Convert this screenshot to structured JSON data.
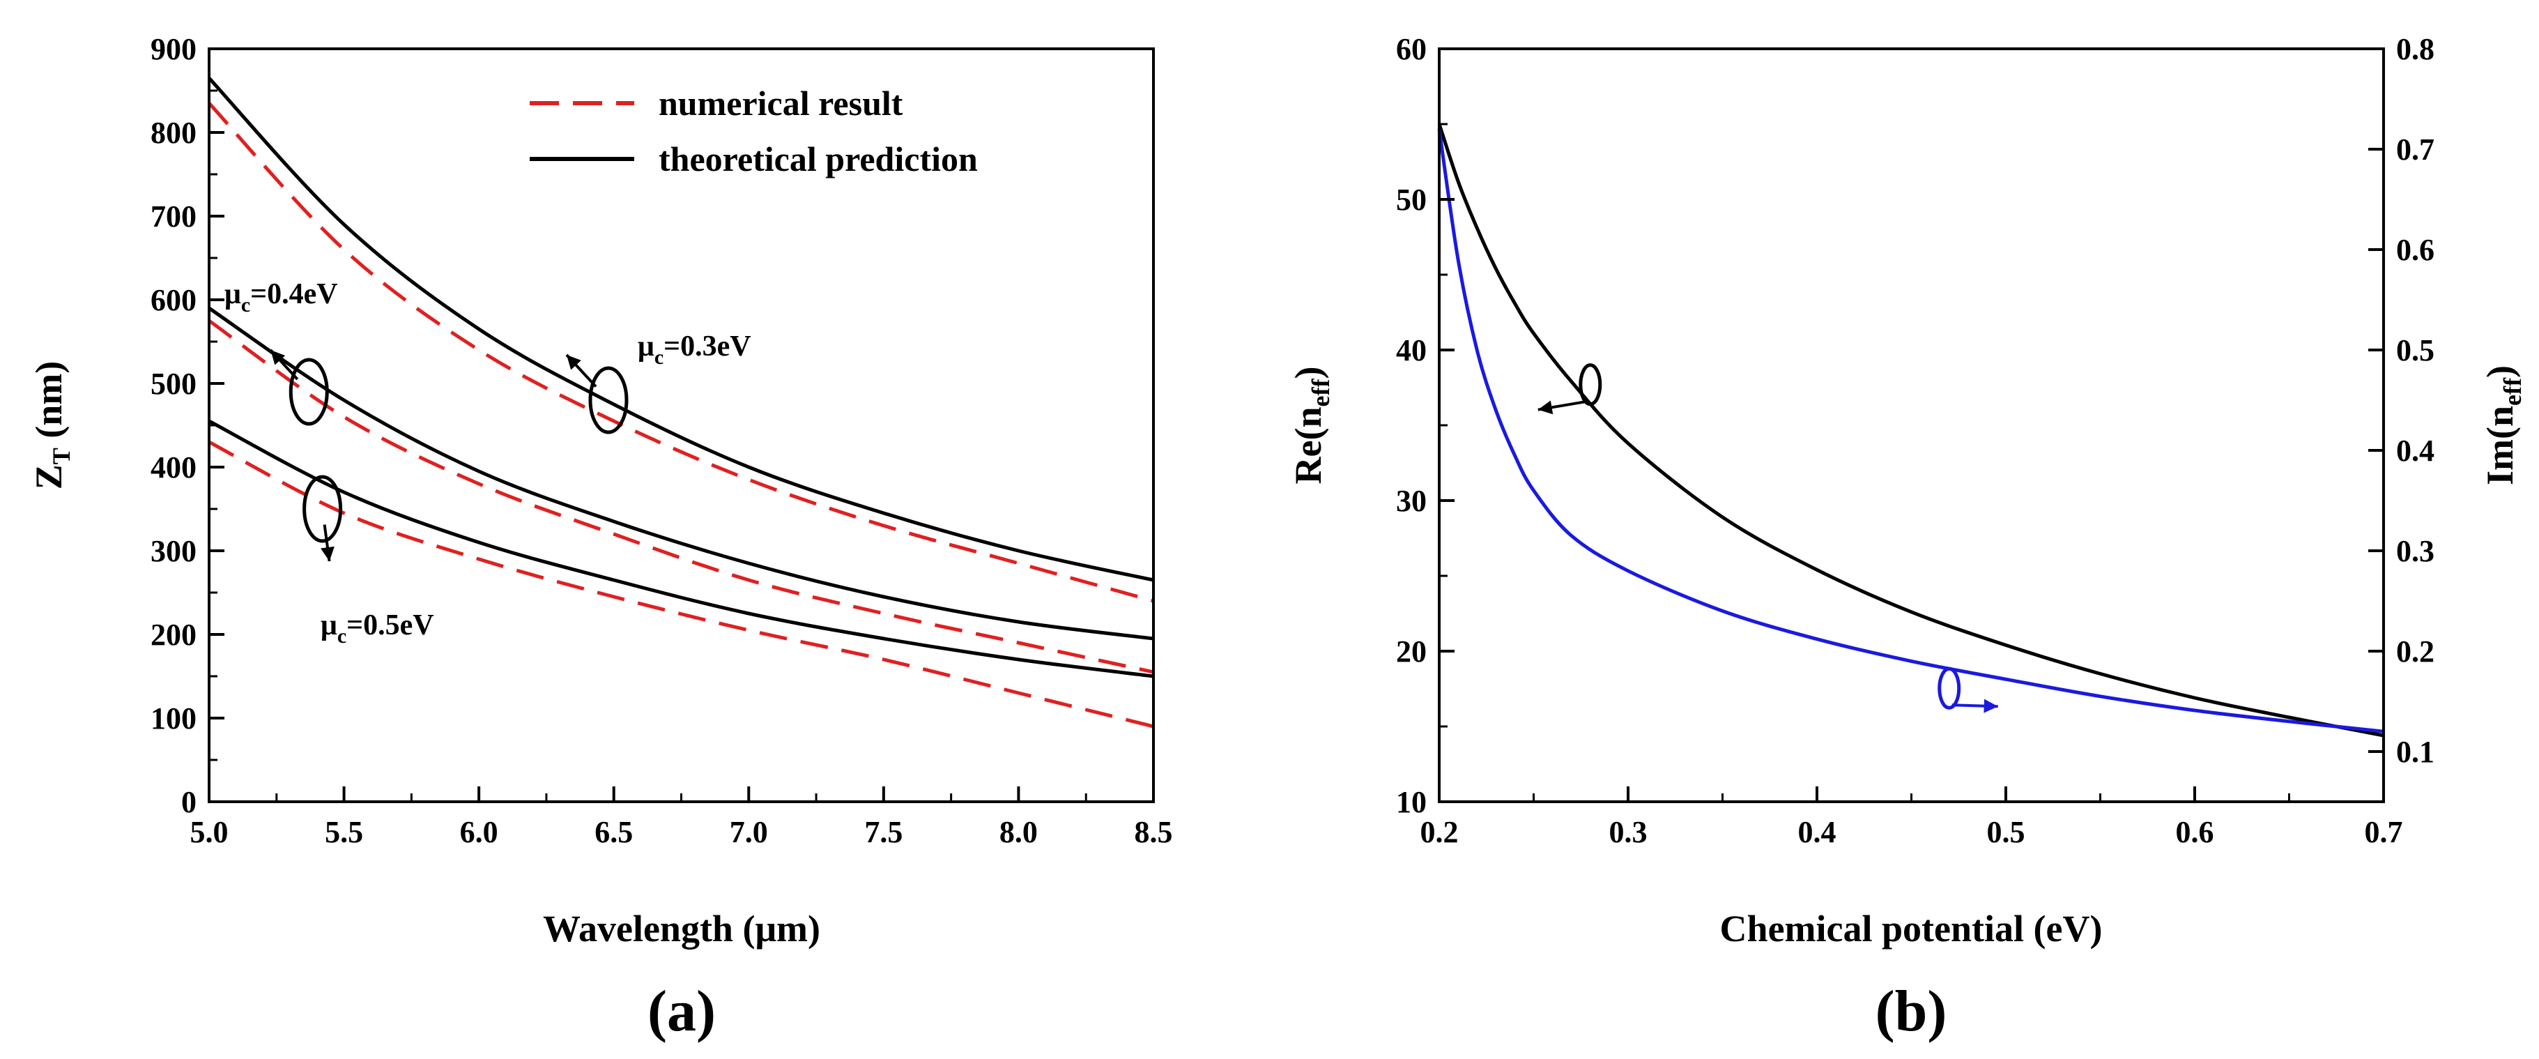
{
  "chart_data": [
    {
      "panel_label": "(a)",
      "type": "line",
      "xlabel": "Wavelength (μm)",
      "ylabel": {
        "main": "Z",
        "sub": "T",
        "rest": " (nm)"
      },
      "xlim": [
        5.0,
        8.5
      ],
      "ylim": [
        0,
        900
      ],
      "xticks": [
        "5.0",
        "5.5",
        "6.0",
        "6.5",
        "7.0",
        "7.5",
        "8.0",
        "8.5"
      ],
      "yticks": [
        "0",
        "100",
        "200",
        "300",
        "400",
        "500",
        "600",
        "700",
        "800",
        "900"
      ],
      "grid": false,
      "legend_position": "top-right",
      "legend": [
        {
          "label": "numerical result",
          "style": "dashed",
          "color": "#e02020"
        },
        {
          "label": "theoretical prediction",
          "style": "solid",
          "color": "#000000"
        }
      ],
      "x": [
        5.0,
        5.5,
        6.0,
        6.5,
        7.0,
        7.5,
        8.0,
        8.5
      ],
      "series": [
        {
          "group": "μc=0.3eV",
          "kind": "theoretical prediction",
          "style": "solid",
          "color": "#000000",
          "values": [
            865,
            690,
            565,
            475,
            400,
            345,
            300,
            265
          ]
        },
        {
          "group": "μc=0.3eV",
          "kind": "numerical result",
          "style": "dashed",
          "color": "#e02020",
          "values": [
            835,
            660,
            540,
            455,
            385,
            330,
            285,
            240
          ]
        },
        {
          "group": "μc=0.4eV",
          "kind": "theoretical prediction",
          "style": "solid",
          "color": "#000000",
          "values": [
            590,
            480,
            395,
            335,
            285,
            245,
            215,
            195
          ]
        },
        {
          "group": "μc=0.4eV",
          "kind": "numerical result",
          "style": "dashed",
          "color": "#e02020",
          "values": [
            575,
            460,
            380,
            320,
            265,
            225,
            190,
            155
          ]
        },
        {
          "group": "μc=0.5eV",
          "kind": "theoretical prediction",
          "style": "solid",
          "color": "#000000",
          "values": [
            455,
            370,
            310,
            265,
            225,
            195,
            170,
            150
          ]
        },
        {
          "group": "μc=0.5eV",
          "kind": "numerical result",
          "style": "dashed",
          "color": "#e02020",
          "values": [
            430,
            345,
            290,
            245,
            205,
            170,
            130,
            90
          ]
        }
      ],
      "annotations": [
        {
          "main": "μ",
          "sub": "c",
          "rest": "=0.3eV",
          "ellipse_at": [
            6.48,
            480
          ]
        },
        {
          "main": "μ",
          "sub": "c",
          "rest": "=0.4eV",
          "ellipse_at": [
            5.37,
            490
          ]
        },
        {
          "main": "μ",
          "sub": "c",
          "rest": "=0.5eV",
          "ellipse_at": [
            5.42,
            350
          ]
        }
      ]
    },
    {
      "panel_label": "(b)",
      "type": "line",
      "xlabel": "Chemical potential (eV)",
      "ylabel_left": {
        "main": "Re(n",
        "sub": "eff",
        "rest": ")"
      },
      "ylabel_right": {
        "main": "Im(n",
        "sub": "eff",
        "rest": ")"
      },
      "xlim": [
        0.2,
        0.7
      ],
      "ylim_left": [
        10,
        60
      ],
      "ylim_right": [
        0.05,
        0.8
      ],
      "xticks": [
        "0.2",
        "0.3",
        "0.4",
        "0.5",
        "0.6",
        "0.7"
      ],
      "yticks_left": [
        "10",
        "20",
        "30",
        "40",
        "50",
        "60"
      ],
      "yticks_right": [
        "0.1",
        "0.2",
        "0.3",
        "0.4",
        "0.5",
        "0.6",
        "0.7",
        "0.8"
      ],
      "grid": false,
      "x": [
        0.2,
        0.21,
        0.22,
        0.23,
        0.24,
        0.25,
        0.27,
        0.3,
        0.35,
        0.4,
        0.45,
        0.5,
        0.55,
        0.6,
        0.65,
        0.7
      ],
      "series": [
        {
          "name": "Re(neff)",
          "axis": "left",
          "color": "#000000",
          "values": [
            55,
            51.2,
            48.1,
            45.4,
            43.1,
            41.1,
            37.9,
            33.8,
            28.9,
            25.4,
            22.6,
            20.4,
            18.5,
            16.9,
            15.6,
            14.4
          ]
        },
        {
          "name": "Im(neff)",
          "axis": "right",
          "color": "#1a1adf",
          "values": [
            0.72,
            0.59,
            0.5,
            0.44,
            0.395,
            0.36,
            0.315,
            0.28,
            0.24,
            0.212,
            0.19,
            0.172,
            0.155,
            0.141,
            0.13,
            0.12
          ]
        }
      ]
    }
  ]
}
